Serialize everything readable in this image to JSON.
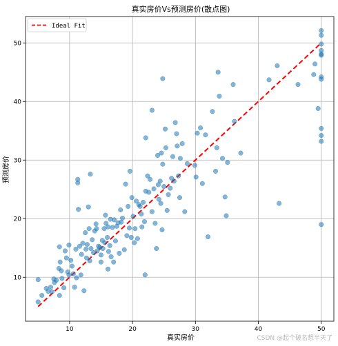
{
  "chart_data": {
    "type": "scatter",
    "title": "真实房价Vs预测房价(散点图)",
    "xlabel": "真实房价",
    "ylabel": "预测房价",
    "xlim": [
      3,
      52
    ],
    "ylim": [
      2.5,
      54.5
    ],
    "xticks": [
      10,
      20,
      30,
      40,
      50
    ],
    "yticks": [
      10,
      20,
      30,
      40,
      50
    ],
    "grid": true,
    "legend_position": "top-left",
    "colors": {
      "points": "#1f77b4",
      "ideal_line": "#ff0000"
    },
    "ideal_line": {
      "name": "Ideal Fit",
      "x": [
        5,
        50
      ],
      "y": [
        5,
        50
      ]
    },
    "points": [
      [
        5,
        9.6
      ],
      [
        5,
        5.8
      ],
      [
        5.6,
        6.9
      ],
      [
        6.3,
        8.1
      ],
      [
        6.6,
        7.6
      ],
      [
        7,
        8.3
      ],
      [
        7.2,
        7.5
      ],
      [
        7.5,
        9.7
      ],
      [
        7.6,
        9.1
      ],
      [
        7.9,
        9.5
      ],
      [
        8.3,
        11.5
      ],
      [
        8.4,
        6.9
      ],
      [
        8.5,
        12.6
      ],
      [
        8.4,
        15.2
      ],
      [
        8.7,
        11.1
      ],
      [
        8.8,
        9.8
      ],
      [
        9.1,
        8.2
      ],
      [
        9.3,
        14.5
      ],
      [
        9.5,
        13.3
      ],
      [
        9.7,
        10.9
      ],
      [
        9.9,
        10.4
      ],
      [
        9.9,
        15.5
      ],
      [
        10.2,
        12.9
      ],
      [
        10.4,
        11.9
      ],
      [
        10.6,
        10.6
      ],
      [
        10.8,
        8.3
      ],
      [
        11,
        14.8
      ],
      [
        11.1,
        9.9
      ],
      [
        11.3,
        26.7
      ],
      [
        11.3,
        26.1
      ],
      [
        11.4,
        21.6
      ],
      [
        11.6,
        15.3
      ],
      [
        11.8,
        10.4
      ],
      [
        11.9,
        13.9
      ],
      [
        12.1,
        15.8
      ],
      [
        12.3,
        7.7
      ],
      [
        12.5,
        17.6
      ],
      [
        12.6,
        14.8
      ],
      [
        12.7,
        13.3
      ],
      [
        12.8,
        15.6
      ],
      [
        13,
        22
      ],
      [
        13.1,
        18.3
      ],
      [
        13.2,
        12.8
      ],
      [
        13.3,
        27.6
      ],
      [
        13.4,
        14.9
      ],
      [
        13.6,
        16.4
      ],
      [
        13.8,
        14.2
      ],
      [
        14,
        17.9
      ],
      [
        14.2,
        19.1
      ],
      [
        14.3,
        18.3
      ],
      [
        14.4,
        14.5
      ],
      [
        14.6,
        15.3
      ],
      [
        14.8,
        15.1
      ],
      [
        15,
        13.8
      ],
      [
        15,
        12.6
      ],
      [
        15.2,
        16.3
      ],
      [
        15.3,
        14.9
      ],
      [
        15.5,
        18.3
      ],
      [
        15.6,
        15.9
      ],
      [
        15.7,
        20.6
      ],
      [
        15.8,
        19.2
      ],
      [
        16,
        16.8
      ],
      [
        16.1,
        11.4
      ],
      [
        16.1,
        18.6
      ],
      [
        16.2,
        14.4
      ],
      [
        16.4,
        15.4
      ],
      [
        16.5,
        19.9
      ],
      [
        16.6,
        13.5
      ],
      [
        16.8,
        18.5
      ],
      [
        17,
        12.6
      ],
      [
        17.1,
        19.8
      ],
      [
        17.3,
        16.2
      ],
      [
        17.5,
        18.7
      ],
      [
        17.7,
        19.3
      ],
      [
        17.9,
        14.1
      ],
      [
        18.1,
        21.5
      ],
      [
        18.2,
        19.4
      ],
      [
        18.4,
        20.1
      ],
      [
        18.7,
        14.7
      ],
      [
        18.9,
        25.9
      ],
      [
        19.1,
        17.1
      ],
      [
        19.3,
        22.1
      ],
      [
        19.5,
        18.4
      ],
      [
        19.6,
        28.1
      ],
      [
        19.8,
        16.8
      ],
      [
        19.9,
        23.6
      ],
      [
        20.1,
        20.4
      ],
      [
        20.3,
        15.9
      ],
      [
        20.4,
        18.3
      ],
      [
        20.6,
        23
      ],
      [
        20.8,
        16.6
      ],
      [
        21,
        22.4
      ],
      [
        21.2,
        22.1
      ],
      [
        21.4,
        20.8
      ],
      [
        21.5,
        18.6
      ],
      [
        21.7,
        22.8
      ],
      [
        21.9,
        19.5
      ],
      [
        22,
        10.4
      ],
      [
        22.1,
        24.7
      ],
      [
        22.1,
        33.8
      ],
      [
        22.4,
        27.3
      ],
      [
        22.6,
        24.5
      ],
      [
        22.8,
        26.7
      ],
      [
        23.1,
        38.5
      ],
      [
        23.1,
        21.2
      ],
      [
        23.4,
        25.1
      ],
      [
        23.6,
        19.2
      ],
      [
        23.8,
        14.9
      ],
      [
        24,
        30.8
      ],
      [
        24.1,
        25.8
      ],
      [
        24.2,
        23.3
      ],
      [
        24.4,
        26.4
      ],
      [
        24.5,
        22.6
      ],
      [
        24.6,
        31.2
      ],
      [
        24.7,
        18.1
      ],
      [
        24.8,
        29.3
      ],
      [
        24.8,
        43.9
      ],
      [
        25,
        25.5
      ],
      [
        25.2,
        35.3
      ],
      [
        25.3,
        32.1
      ],
      [
        25.5,
        21.4
      ],
      [
        25.7,
        24.1
      ],
      [
        26,
        25.2
      ],
      [
        26.2,
        26.9
      ],
      [
        26.4,
        30.6
      ],
      [
        26.6,
        26.4
      ],
      [
        26.8,
        36.4
      ],
      [
        27,
        34.5
      ],
      [
        27.1,
        32.4
      ],
      [
        27.3,
        27.3
      ],
      [
        27.5,
        23.6
      ],
      [
        27.6,
        30.3
      ],
      [
        27.9,
        32.8
      ],
      [
        28.3,
        21.2
      ],
      [
        28.7,
        29.4
      ],
      [
        29.9,
        29.1
      ],
      [
        30.1,
        27.1
      ],
      [
        30.3,
        34.6
      ],
      [
        30.8,
        35.5
      ],
      [
        31.1,
        26
      ],
      [
        31.6,
        34.3
      ],
      [
        32,
        16.9
      ],
      [
        32.7,
        38.3
      ],
      [
        33.2,
        28.1
      ],
      [
        33.4,
        32.1
      ],
      [
        33.6,
        45
      ],
      [
        33.8,
        40.9
      ],
      [
        34.3,
        30.3
      ],
      [
        34.7,
        23.7
      ],
      [
        34.9,
        20.5
      ],
      [
        35.1,
        29.6
      ],
      [
        36,
        42.9
      ],
      [
        36.2,
        36.6
      ],
      [
        37.2,
        31.2
      ],
      [
        41.7,
        43.7
      ],
      [
        43,
        46.1
      ],
      [
        43.3,
        22.6
      ],
      [
        46.3,
        42.9
      ],
      [
        48.8,
        44.6
      ],
      [
        49,
        46.4
      ],
      [
        49.5,
        38.8
      ],
      [
        50,
        52.1
      ],
      [
        50,
        51.3
      ],
      [
        50,
        49.8
      ],
      [
        50,
        48.7
      ],
      [
        50,
        48.1
      ],
      [
        50,
        47.9
      ],
      [
        50,
        44.2
      ],
      [
        50,
        43.8
      ],
      [
        50,
        35.4
      ],
      [
        50,
        34.2
      ],
      [
        50,
        33.2
      ],
      [
        50,
        19
      ]
    ]
  },
  "watermark": "CSDN @起个破名想半天了"
}
